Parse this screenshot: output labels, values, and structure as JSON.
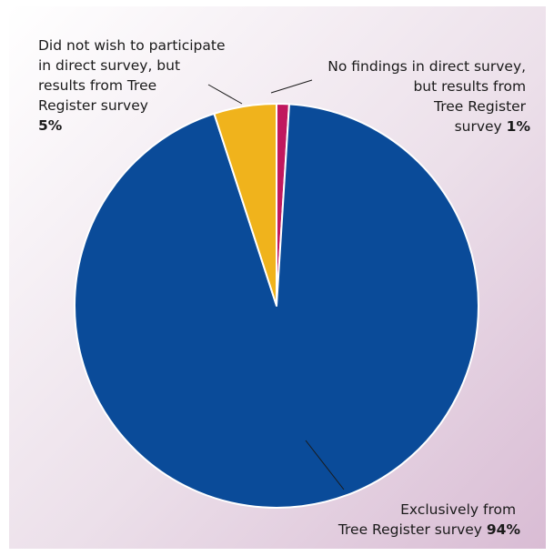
{
  "chart_data": {
    "type": "pie",
    "title": "",
    "slices": [
      {
        "name": "Exclusively from Tree Register survey",
        "value": 94,
        "color": "#0a4b99",
        "label_lines": [
          "Exclusively from",
          "Tree Register survey"
        ],
        "value_label": "94%"
      },
      {
        "name": "Did not wish to participate in direct survey, but results from Tree Register survey",
        "value": 5,
        "color": "#f0b31c",
        "label_lines": [
          "Did not wish to participate",
          "in direct survey, but",
          "results from Tree",
          "Register survey"
        ],
        "value_label": "5%"
      },
      {
        "name": "No findings in direct survey, but results from Tree Register survey",
        "value": 1,
        "color": "#c0185e",
        "label_lines": [
          "No findings in direct survey,",
          "but results from",
          "Tree Register"
        ],
        "value_label_prefix": "survey",
        "value_label": "1%"
      }
    ]
  }
}
